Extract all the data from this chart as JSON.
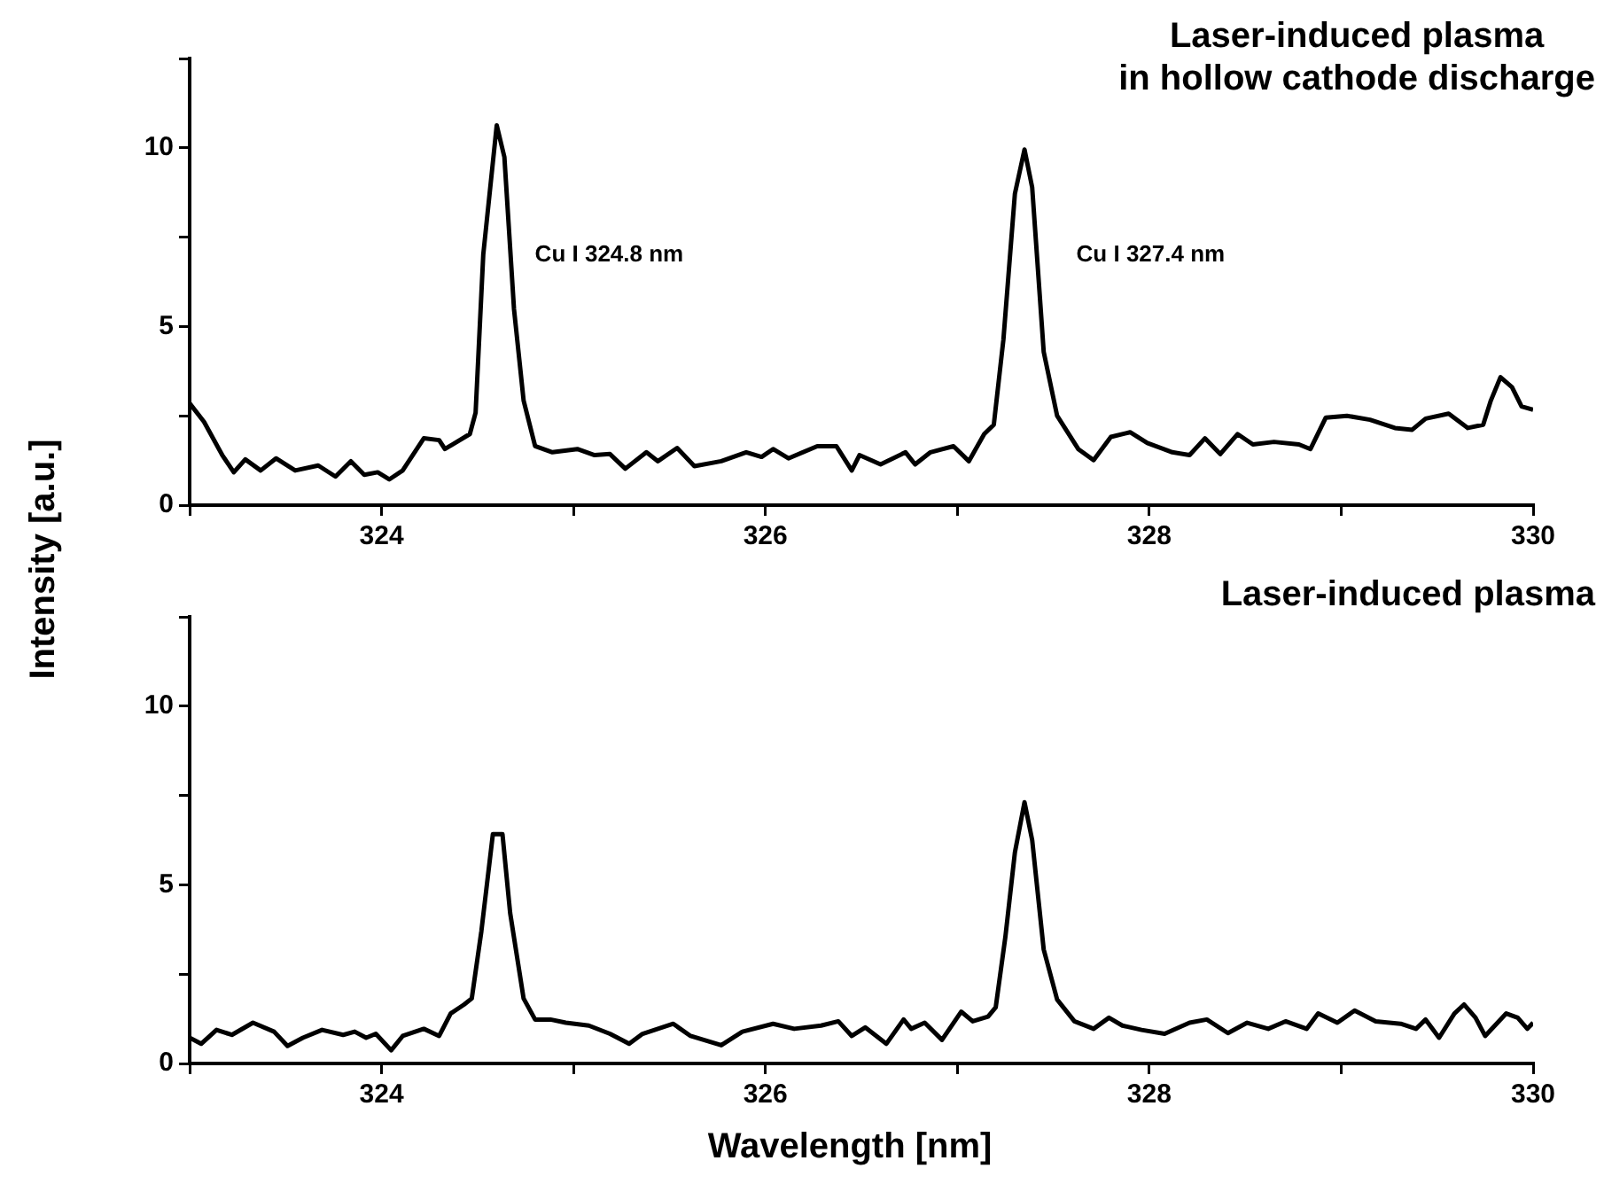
{
  "chart_data": [
    {
      "type": "line",
      "title": "Laser-induced plasma in hollow cathode discharge",
      "ylabel": "Intensity [a.u.]",
      "marker": "none",
      "line_style": "solid",
      "xlim": [
        323,
        330
      ],
      "xticks": [
        {
          "value": 323,
          "label": null
        },
        324,
        {
          "value": 325,
          "label": null
        },
        326,
        {
          "value": 327,
          "label": null
        },
        328,
        {
          "value": 329,
          "label": null
        },
        330
      ],
      "ylim": [
        0,
        12.5
      ],
      "yticks": [
        0,
        {
          "value": 2.5,
          "label": null
        },
        5,
        {
          "value": 7.5,
          "label": null
        },
        10,
        {
          "value": 12.5,
          "label": null
        }
      ],
      "annotations": [
        "Cu I 324.8 nm",
        "Cu I 327.4 nm"
      ],
      "series": [
        {
          "color": "#000000",
          "x": [
            323.0,
            323.075,
            323.17,
            323.23,
            323.29,
            323.37,
            323.45,
            323.55,
            323.67,
            323.76,
            323.84,
            323.91,
            323.98,
            324.04,
            324.11,
            324.22,
            324.3,
            324.33,
            324.46,
            324.49,
            324.53,
            324.6,
            324.64,
            324.69,
            324.74,
            324.8,
            324.89,
            325.02,
            325.11,
            325.19,
            325.27,
            325.38,
            325.44,
            325.54,
            325.63,
            325.77,
            325.9,
            325.98,
            326.04,
            326.12,
            326.27,
            326.37,
            326.45,
            326.49,
            326.6,
            326.73,
            326.78,
            326.86,
            326.98,
            327.06,
            327.14,
            327.19,
            327.24,
            327.3,
            327.35,
            327.39,
            327.45,
            327.52,
            327.63,
            327.71,
            327.8,
            327.9,
            327.99,
            328.12,
            328.21,
            328.29,
            328.37,
            328.46,
            328.54,
            328.65,
            328.78,
            328.84,
            328.92,
            329.03,
            329.15,
            329.28,
            329.37,
            329.44,
            329.56,
            329.66,
            329.74,
            329.78,
            329.83,
            329.89,
            329.94,
            330.0
          ],
          "values": [
            2.85,
            2.33,
            1.4,
            0.92,
            1.28,
            0.97,
            1.31,
            0.97,
            1.11,
            0.8,
            1.23,
            0.85,
            0.92,
            0.72,
            0.97,
            1.87,
            1.82,
            1.57,
            1.99,
            2.59,
            7.02,
            10.63,
            9.74,
            5.49,
            2.93,
            1.65,
            1.48,
            1.57,
            1.4,
            1.43,
            1.02,
            1.48,
            1.23,
            1.6,
            1.09,
            1.23,
            1.48,
            1.35,
            1.57,
            1.31,
            1.65,
            1.65,
            0.97,
            1.4,
            1.14,
            1.48,
            1.14,
            1.48,
            1.65,
            1.23,
            1.99,
            2.25,
            4.63,
            8.72,
            9.95,
            8.89,
            4.29,
            2.5,
            1.57,
            1.26,
            1.91,
            2.04,
            1.74,
            1.48,
            1.4,
            1.87,
            1.43,
            1.99,
            1.7,
            1.77,
            1.7,
            1.57,
            2.45,
            2.5,
            2.39,
            2.16,
            2.11,
            2.42,
            2.56,
            2.16,
            2.25,
            2.93,
            3.58,
            3.3,
            2.76,
            2.67
          ]
        }
      ]
    },
    {
      "type": "line",
      "title": "Laser-induced plasma",
      "xlabel": "Wavelength [nm]",
      "marker": "none",
      "line_style": "solid",
      "xlim": [
        323,
        330
      ],
      "xticks": [
        {
          "value": 323,
          "label": null
        },
        324,
        {
          "value": 325,
          "label": null
        },
        326,
        {
          "value": 327,
          "label": null
        },
        328,
        {
          "value": 329,
          "label": null
        },
        330
      ],
      "ylim": [
        0,
        12.5
      ],
      "yticks": [
        0,
        {
          "value": 2.5,
          "label": null
        },
        5,
        {
          "value": 7.5,
          "label": null
        },
        10,
        {
          "value": 12.5,
          "label": null
        }
      ],
      "series": [
        {
          "color": "#000000",
          "x": [
            323.0,
            323.06,
            323.14,
            323.22,
            323.33,
            323.44,
            323.51,
            323.59,
            323.69,
            323.8,
            323.86,
            323.92,
            323.97,
            324.05,
            324.11,
            324.22,
            324.3,
            324.36,
            324.43,
            324.47,
            324.52,
            324.58,
            324.63,
            324.67,
            324.74,
            324.8,
            324.88,
            324.96,
            325.08,
            325.19,
            325.29,
            325.36,
            325.52,
            325.61,
            325.77,
            325.88,
            326.04,
            326.15,
            326.29,
            326.38,
            326.45,
            326.52,
            326.63,
            326.72,
            326.76,
            326.83,
            326.92,
            327.02,
            327.08,
            327.16,
            327.2,
            327.25,
            327.3,
            327.35,
            327.39,
            327.45,
            327.52,
            327.61,
            327.71,
            327.79,
            327.86,
            327.96,
            328.08,
            328.21,
            328.3,
            328.41,
            328.51,
            328.62,
            328.71,
            328.82,
            328.88,
            328.98,
            329.07,
            329.18,
            329.31,
            329.39,
            329.44,
            329.51,
            329.59,
            329.64,
            329.7,
            329.75,
            329.86,
            329.92,
            329.97,
            330.0
          ],
          "values": [
            0.72,
            0.55,
            0.94,
            0.8,
            1.14,
            0.89,
            0.49,
            0.72,
            0.94,
            0.8,
            0.89,
            0.72,
            0.83,
            0.37,
            0.77,
            0.97,
            0.77,
            1.4,
            1.65,
            1.82,
            3.7,
            6.42,
            6.42,
            4.21,
            1.82,
            1.23,
            1.23,
            1.14,
            1.06,
            0.83,
            0.55,
            0.83,
            1.11,
            0.77,
            0.51,
            0.89,
            1.11,
            0.97,
            1.06,
            1.18,
            0.77,
            1.01,
            0.55,
            1.23,
            0.97,
            1.14,
            0.66,
            1.45,
            1.18,
            1.31,
            1.57,
            3.53,
            5.91,
            7.31,
            6.25,
            3.19,
            1.79,
            1.18,
            0.97,
            1.28,
            1.06,
            0.94,
            0.83,
            1.14,
            1.23,
            0.85,
            1.14,
            0.97,
            1.18,
            0.97,
            1.4,
            1.14,
            1.48,
            1.18,
            1.11,
            0.97,
            1.23,
            0.72,
            1.4,
            1.65,
            1.28,
            0.77,
            1.4,
            1.28,
            0.97,
            1.14
          ]
        }
      ]
    }
  ]
}
